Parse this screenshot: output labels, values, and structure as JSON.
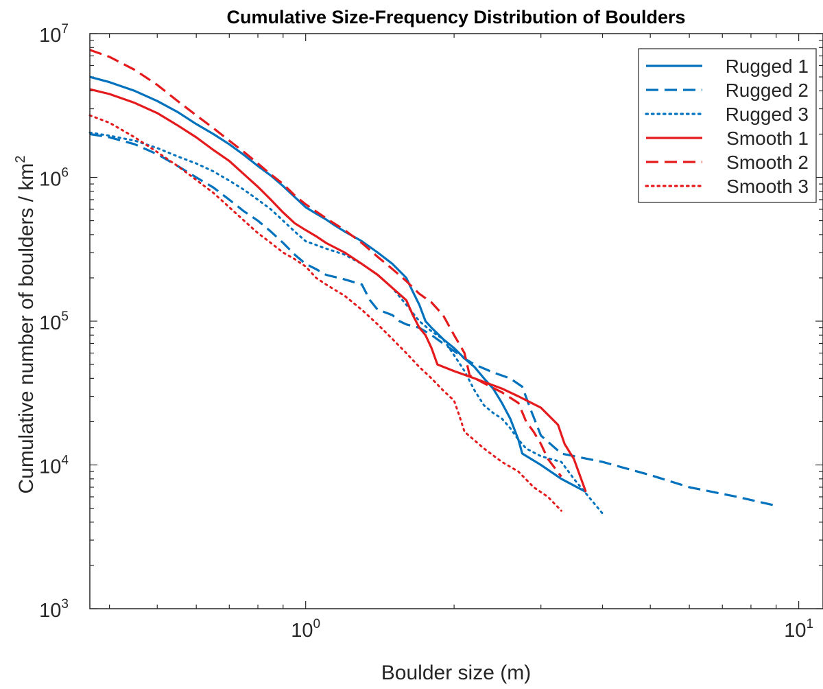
{
  "chart_data": {
    "type": "line",
    "title": "Cumulative Size-Frequency Distribution of Boulders",
    "xlabel": "Boulder size (m)",
    "ylabel_main": "Cumulative number of boulders / km",
    "ylabel_sup": "2",
    "xscale": "log",
    "yscale": "log",
    "xlim": [
      0.365,
      11.2
    ],
    "ylim": [
      1000,
      10000000
    ],
    "grid": false,
    "legend_position": "top-right",
    "x_ticks": [
      {
        "value": 1,
        "base": "10",
        "exp": "0"
      },
      {
        "value": 10,
        "base": "10",
        "exp": "1"
      }
    ],
    "y_ticks": [
      {
        "value": 1000,
        "base": "10",
        "exp": "3"
      },
      {
        "value": 10000,
        "base": "10",
        "exp": "4"
      },
      {
        "value": 100000,
        "base": "10",
        "exp": "5"
      },
      {
        "value": 1000000,
        "base": "10",
        "exp": "6"
      },
      {
        "value": 10000000,
        "base": "10",
        "exp": "7"
      }
    ],
    "series": [
      {
        "name": "Rugged 1",
        "color": "#0072BD",
        "style": "solid",
        "points": [
          [
            0.365,
            5000000
          ],
          [
            0.4,
            4600000
          ],
          [
            0.45,
            4000000
          ],
          [
            0.5,
            3400000
          ],
          [
            0.55,
            2850000
          ],
          [
            0.6,
            2350000
          ],
          [
            0.65,
            2000000
          ],
          [
            0.7,
            1700000
          ],
          [
            0.75,
            1430000
          ],
          [
            0.8,
            1200000
          ],
          [
            0.85,
            1030000
          ],
          [
            0.9,
            870000
          ],
          [
            0.95,
            730000
          ],
          [
            1.0,
            620000
          ],
          [
            1.05,
            560000
          ],
          [
            1.1,
            510000
          ],
          [
            1.15,
            460000
          ],
          [
            1.2,
            420000
          ],
          [
            1.3,
            360000
          ],
          [
            1.4,
            300000
          ],
          [
            1.5,
            250000
          ],
          [
            1.6,
            200000
          ],
          [
            1.65,
            160000
          ],
          [
            1.7,
            130000
          ],
          [
            1.75,
            100000
          ],
          [
            1.8,
            90000
          ],
          [
            1.9,
            75000
          ],
          [
            2.0,
            65000
          ],
          [
            2.1,
            55000
          ],
          [
            2.2,
            48000
          ],
          [
            2.3,
            40000
          ],
          [
            2.4,
            34000
          ],
          [
            2.5,
            27000
          ],
          [
            2.6,
            21000
          ],
          [
            2.7,
            15000
          ],
          [
            2.75,
            12000
          ],
          [
            3.0,
            10000
          ],
          [
            3.3,
            8000
          ],
          [
            3.7,
            6500
          ]
        ]
      },
      {
        "name": "Rugged 2",
        "color": "#0072BD",
        "style": "dashed",
        "points": [
          [
            0.365,
            2000000
          ],
          [
            0.4,
            1900000
          ],
          [
            0.45,
            1700000
          ],
          [
            0.5,
            1450000
          ],
          [
            0.55,
            1200000
          ],
          [
            0.6,
            1000000
          ],
          [
            0.65,
            850000
          ],
          [
            0.7,
            700000
          ],
          [
            0.75,
            580000
          ],
          [
            0.8,
            500000
          ],
          [
            0.85,
            420000
          ],
          [
            0.9,
            350000
          ],
          [
            0.95,
            290000
          ],
          [
            1.0,
            250000
          ],
          [
            1.05,
            230000
          ],
          [
            1.1,
            210000
          ],
          [
            1.2,
            195000
          ],
          [
            1.3,
            180000
          ],
          [
            1.35,
            140000
          ],
          [
            1.4,
            120000
          ],
          [
            1.45,
            115000
          ],
          [
            1.5,
            110000
          ],
          [
            1.55,
            100000
          ],
          [
            1.6,
            95000
          ],
          [
            1.7,
            90000
          ],
          [
            1.8,
            80000
          ],
          [
            1.9,
            70000
          ],
          [
            2.0,
            62000
          ],
          [
            2.1,
            55000
          ],
          [
            2.2,
            50000
          ],
          [
            2.4,
            44000
          ],
          [
            2.6,
            40000
          ],
          [
            2.75,
            35000
          ],
          [
            2.85,
            25000
          ],
          [
            3.0,
            16000
          ],
          [
            3.3,
            12000
          ],
          [
            4.0,
            10500
          ],
          [
            5.0,
            8500
          ],
          [
            6.0,
            7000
          ],
          [
            7.5,
            6000
          ],
          [
            9.0,
            5200
          ]
        ]
      },
      {
        "name": "Rugged 3",
        "color": "#0072BD",
        "style": "dotted",
        "points": [
          [
            0.365,
            2050000
          ],
          [
            0.4,
            1950000
          ],
          [
            0.45,
            1800000
          ],
          [
            0.5,
            1600000
          ],
          [
            0.55,
            1400000
          ],
          [
            0.6,
            1250000
          ],
          [
            0.65,
            1100000
          ],
          [
            0.7,
            950000
          ],
          [
            0.75,
            820000
          ],
          [
            0.8,
            700000
          ],
          [
            0.85,
            600000
          ],
          [
            0.9,
            500000
          ],
          [
            0.95,
            420000
          ],
          [
            1.0,
            360000
          ],
          [
            1.1,
            320000
          ],
          [
            1.2,
            290000
          ],
          [
            1.3,
            250000
          ],
          [
            1.4,
            210000
          ],
          [
            1.5,
            170000
          ],
          [
            1.6,
            130000
          ],
          [
            1.7,
            100000
          ],
          [
            1.8,
            85000
          ],
          [
            1.9,
            75000
          ],
          [
            2.0,
            58000
          ],
          [
            2.1,
            45000
          ],
          [
            2.2,
            33000
          ],
          [
            2.3,
            26000
          ],
          [
            2.4,
            23000
          ],
          [
            2.5,
            21000
          ],
          [
            2.6,
            18000
          ],
          [
            2.7,
            15000
          ],
          [
            2.8,
            13000
          ],
          [
            3.0,
            11500
          ],
          [
            3.3,
            10500
          ],
          [
            3.5,
            8000
          ],
          [
            4.0,
            4600
          ]
        ]
      },
      {
        "name": "Smooth 1",
        "color": "#E41A1C",
        "style": "solid",
        "points": [
          [
            0.365,
            4100000
          ],
          [
            0.4,
            3800000
          ],
          [
            0.45,
            3300000
          ],
          [
            0.5,
            2800000
          ],
          [
            0.55,
            2300000
          ],
          [
            0.6,
            1900000
          ],
          [
            0.65,
            1550000
          ],
          [
            0.7,
            1300000
          ],
          [
            0.75,
            1050000
          ],
          [
            0.8,
            860000
          ],
          [
            0.85,
            700000
          ],
          [
            0.9,
            570000
          ],
          [
            0.95,
            480000
          ],
          [
            1.0,
            430000
          ],
          [
            1.05,
            390000
          ],
          [
            1.1,
            350000
          ],
          [
            1.2,
            300000
          ],
          [
            1.3,
            250000
          ],
          [
            1.4,
            210000
          ],
          [
            1.5,
            170000
          ],
          [
            1.6,
            140000
          ],
          [
            1.65,
            110000
          ],
          [
            1.7,
            90000
          ],
          [
            1.75,
            80000
          ],
          [
            1.8,
            65000
          ],
          [
            1.85,
            50000
          ],
          [
            2.0,
            45000
          ],
          [
            2.2,
            40000
          ],
          [
            2.5,
            34000
          ],
          [
            2.7,
            30000
          ],
          [
            3.0,
            25000
          ],
          [
            3.25,
            19000
          ],
          [
            3.35,
            14000
          ],
          [
            3.5,
            11000
          ],
          [
            3.7,
            6500
          ]
        ]
      },
      {
        "name": "Smooth 2",
        "color": "#E41A1C",
        "style": "dashed",
        "points": [
          [
            0.365,
            7700000
          ],
          [
            0.4,
            6900000
          ],
          [
            0.45,
            5600000
          ],
          [
            0.5,
            4400000
          ],
          [
            0.55,
            3400000
          ],
          [
            0.6,
            2700000
          ],
          [
            0.65,
            2200000
          ],
          [
            0.7,
            1800000
          ],
          [
            0.75,
            1500000
          ],
          [
            0.8,
            1250000
          ],
          [
            0.85,
            1050000
          ],
          [
            0.9,
            900000
          ],
          [
            0.95,
            750000
          ],
          [
            1.0,
            650000
          ],
          [
            1.05,
            580000
          ],
          [
            1.1,
            520000
          ],
          [
            1.2,
            430000
          ],
          [
            1.3,
            350000
          ],
          [
            1.4,
            280000
          ],
          [
            1.5,
            230000
          ],
          [
            1.6,
            190000
          ],
          [
            1.7,
            155000
          ],
          [
            1.8,
            135000
          ],
          [
            1.9,
            110000
          ],
          [
            2.0,
            80000
          ],
          [
            2.1,
            60000
          ],
          [
            2.15,
            42000
          ],
          [
            2.3,
            37000
          ],
          [
            2.5,
            32000
          ],
          [
            2.7,
            27000
          ],
          [
            2.8,
            20000
          ],
          [
            2.9,
            17000
          ],
          [
            3.0,
            14000
          ],
          [
            3.1,
            11000
          ],
          [
            3.3,
            8300
          ]
        ]
      },
      {
        "name": "Smooth 3",
        "color": "#E41A1C",
        "style": "dotted",
        "points": [
          [
            0.365,
            2700000
          ],
          [
            0.4,
            2400000
          ],
          [
            0.45,
            1900000
          ],
          [
            0.5,
            1500000
          ],
          [
            0.55,
            1200000
          ],
          [
            0.6,
            960000
          ],
          [
            0.65,
            780000
          ],
          [
            0.7,
            620000
          ],
          [
            0.75,
            500000
          ],
          [
            0.8,
            410000
          ],
          [
            0.85,
            350000
          ],
          [
            0.9,
            300000
          ],
          [
            0.95,
            270000
          ],
          [
            1.0,
            240000
          ],
          [
            1.05,
            200000
          ],
          [
            1.1,
            180000
          ],
          [
            1.2,
            150000
          ],
          [
            1.3,
            120000
          ],
          [
            1.4,
            95000
          ],
          [
            1.5,
            75000
          ],
          [
            1.6,
            60000
          ],
          [
            1.7,
            48000
          ],
          [
            1.8,
            40000
          ],
          [
            1.9,
            33000
          ],
          [
            2.0,
            28000
          ],
          [
            2.05,
            22000
          ],
          [
            2.1,
            17000
          ],
          [
            2.3,
            13000
          ],
          [
            2.5,
            10500
          ],
          [
            2.7,
            9000
          ],
          [
            2.9,
            7000
          ],
          [
            3.1,
            6000
          ],
          [
            3.3,
            4800
          ]
        ]
      }
    ]
  }
}
